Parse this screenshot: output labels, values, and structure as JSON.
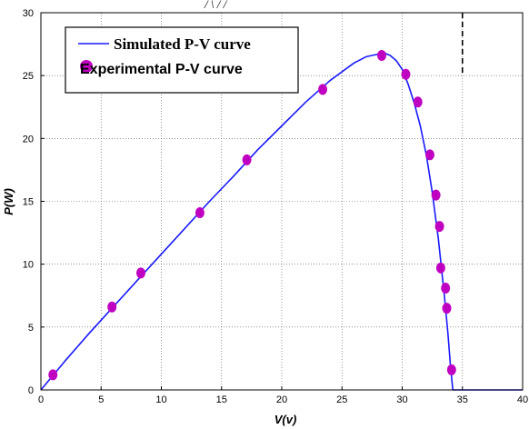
{
  "chart_data": {
    "type": "line",
    "title": "",
    "xlabel": "V(v)",
    "ylabel": "P(W)",
    "xlim": [
      0,
      40
    ],
    "ylim": [
      0,
      30
    ],
    "xticks": [
      "0",
      "5",
      "10",
      "15",
      "20",
      "25",
      "30",
      "35",
      "40"
    ],
    "yticks": [
      "0",
      "5",
      "10",
      "15",
      "20",
      "25",
      "30"
    ],
    "grid": true,
    "legend_position": "top-left",
    "top_text_fragment": "/ \\ / /",
    "vertical_dashed_line_x": 35,
    "series": [
      {
        "name": "Simulated P-V curve",
        "kind": "line",
        "color": "#1a1aff",
        "x": [
          0,
          2,
          4,
          6,
          8,
          10,
          12,
          14,
          16,
          18,
          20,
          22,
          24,
          26,
          27,
          28,
          28.5,
          29,
          29.5,
          30,
          30.5,
          31,
          31.5,
          32,
          32.5,
          33,
          33.5,
          33.8,
          34.0,
          34.2,
          35,
          40
        ],
        "y": [
          0,
          2.3,
          4.5,
          6.6,
          8.7,
          10.8,
          12.9,
          15.0,
          17.0,
          19.1,
          21.0,
          22.9,
          24.6,
          26.0,
          26.5,
          26.7,
          26.8,
          26.6,
          26.2,
          25.5,
          24.3,
          22.8,
          21.0,
          18.7,
          15.7,
          12.0,
          7.5,
          4.5,
          2.0,
          0,
          0,
          0
        ]
      },
      {
        "name": "Experimental P-V curve",
        "kind": "scatter",
        "color": "#c000c0",
        "x": [
          1.0,
          5.9,
          8.3,
          13.2,
          17.1,
          23.4,
          28.3,
          30.3,
          31.3,
          32.3,
          32.8,
          33.1,
          33.2,
          33.6,
          33.7,
          34.1
        ],
        "y": [
          1.2,
          6.6,
          9.3,
          14.1,
          18.3,
          23.9,
          26.6,
          25.1,
          22.9,
          18.7,
          15.5,
          13.0,
          9.7,
          8.1,
          6.5,
          1.6
        ]
      }
    ]
  }
}
